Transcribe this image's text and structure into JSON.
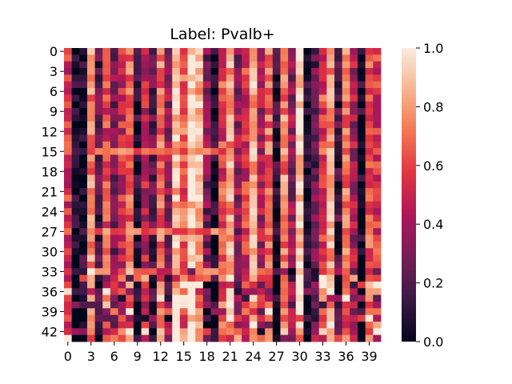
{
  "chart_data": {
    "type": "heatmap",
    "title": "Label: Pvalb+",
    "xlabel": "",
    "ylabel": "",
    "n_rows": 44,
    "n_cols": 41,
    "x_tick_labels": [
      "0",
      "3",
      "6",
      "9",
      "12",
      "15",
      "18",
      "21",
      "24",
      "27",
      "30",
      "33",
      "36",
      "39"
    ],
    "y_tick_labels": [
      "0",
      "3",
      "6",
      "9",
      "12",
      "15",
      "18",
      "21",
      "24",
      "27",
      "30",
      "33",
      "36",
      "39",
      "42"
    ],
    "colorbar": {
      "min": 0.0,
      "max": 1.0,
      "tick_labels": [
        "0.0",
        "0.2",
        "0.4",
        "0.6",
        "0.8",
        "1.0"
      ],
      "colormap": "rocket",
      "colors": [
        "#03051a",
        "#3a1944",
        "#751f58",
        "#ad1759",
        "#e13342",
        "#f37651",
        "#f6b48f",
        "#faebdd"
      ]
    },
    "column_means": [
      0.55,
      0.05,
      0.05,
      0.75,
      0.2,
      0.6,
      0.3,
      0.5,
      0.7,
      0.1,
      0.45,
      0.2,
      0.7,
      0.35,
      0.9,
      0.65,
      0.95,
      0.85,
      0.3,
      0.05,
      0.6,
      0.8,
      0.35,
      0.55,
      0.85,
      0.4,
      0.7,
      0.1,
      0.75,
      0.35,
      0.95,
      0.05,
      0.25,
      0.6,
      0.8,
      0.15,
      0.7,
      0.4,
      0.05,
      0.65,
      0.55
    ],
    "row_pattern": {
      "bright_rows": [
        15,
        27,
        33
      ],
      "mixed_region_start_row": 33
    }
  }
}
